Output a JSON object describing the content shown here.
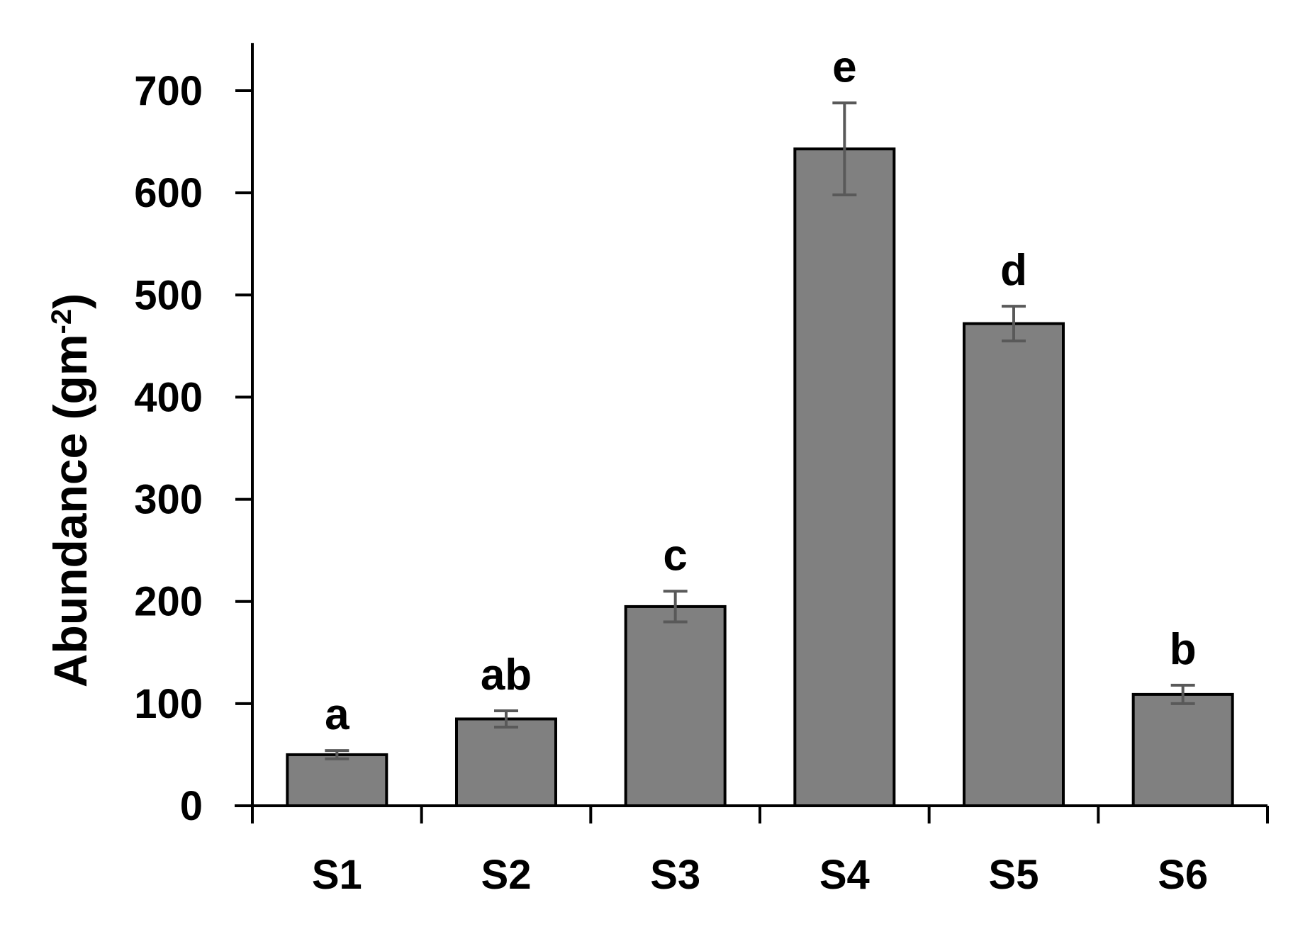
{
  "chart_data": {
    "type": "bar",
    "categories": [
      "S1",
      "S2",
      "S3",
      "S4",
      "S5",
      "S6"
    ],
    "series": [
      {
        "values": [
          50,
          85,
          195,
          643,
          472,
          109
        ],
        "errors": [
          4,
          8,
          15,
          45,
          17,
          9
        ],
        "significance_letters": [
          "a",
          "ab",
          "c",
          "e",
          "d",
          "b"
        ]
      }
    ],
    "ylabel": "Abundance (gm",
    "ylabel_superscript": "-2",
    "ylabel_suffix": ")",
    "xlabel": "",
    "title": "",
    "ylim": [
      0,
      750
    ],
    "yticks": [
      0,
      100,
      200,
      300,
      400,
      500,
      600,
      700
    ],
    "grid": false,
    "legend": "none",
    "colors": {
      "bar_fill": "#808080",
      "bar_stroke": "#000000",
      "error_bar": "#595959",
      "axis": "#000000"
    }
  }
}
